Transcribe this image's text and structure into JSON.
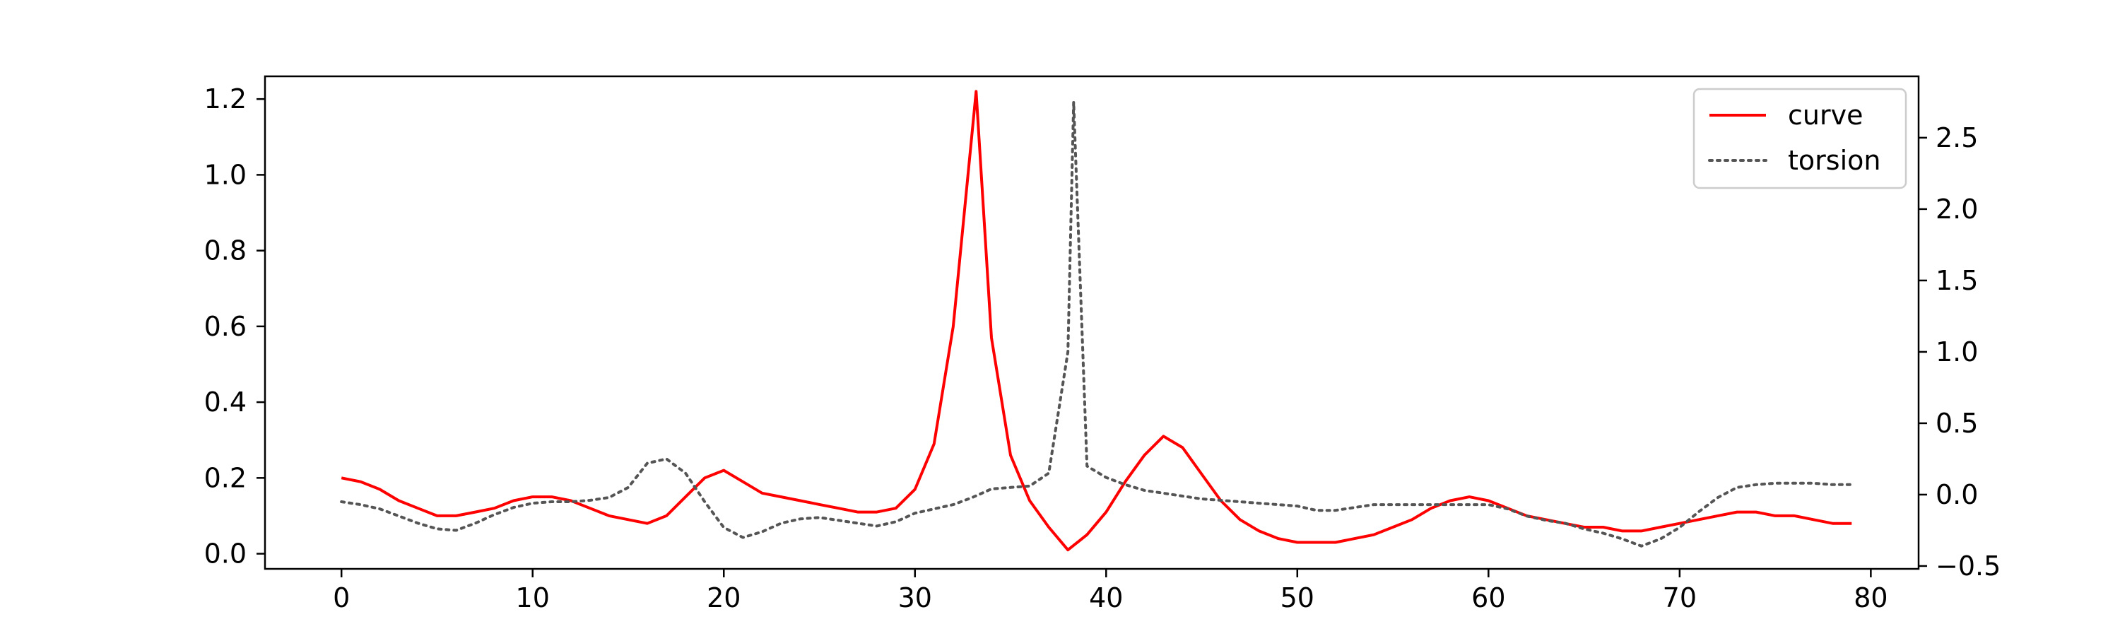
{
  "chart_data": {
    "type": "line",
    "title": "",
    "xlabel": "",
    "ylabel_left": "",
    "ylabel_right": "",
    "xlim": [
      -4,
      82.5
    ],
    "ylim_left": [
      -0.04,
      1.26
    ],
    "ylim_right": [
      -0.52,
      2.93
    ],
    "x_ticks": [
      0,
      10,
      20,
      30,
      40,
      50,
      60,
      70,
      80
    ],
    "x_tick_labels": [
      "0",
      "10",
      "20",
      "30",
      "40",
      "50",
      "60",
      "70",
      "80"
    ],
    "left_ticks": [
      0.0,
      0.2,
      0.4,
      0.6,
      0.8,
      1.0,
      1.2
    ],
    "left_tick_labels": [
      "0.0",
      "0.2",
      "0.4",
      "0.6",
      "0.8",
      "1.0",
      "1.2"
    ],
    "right_ticks": [
      -0.5,
      0.0,
      0.5,
      1.0,
      1.5,
      2.0,
      2.5
    ],
    "right_tick_labels": [
      "−0.5",
      "0.0",
      "0.5",
      "1.0",
      "1.5",
      "2.0",
      "2.5"
    ],
    "grid": false,
    "legend_position": "top-right",
    "series": [
      {
        "name": "curve",
        "axis": "left",
        "color": "#ff0000",
        "style": "solid",
        "x": [
          0,
          1,
          2,
          3,
          4,
          5,
          6,
          7,
          8,
          9,
          10,
          11,
          12,
          13,
          14,
          15,
          16,
          17,
          18,
          19,
          20,
          21,
          22,
          23,
          24,
          25,
          26,
          27,
          28,
          29,
          30,
          31,
          32,
          33.2,
          34,
          35,
          36,
          37,
          38,
          39,
          40,
          41,
          42,
          43,
          44,
          45,
          46,
          47,
          48,
          49,
          50,
          51,
          52,
          53,
          54,
          55,
          56,
          57,
          58,
          59,
          60,
          61,
          62,
          63,
          64,
          65,
          66,
          67,
          68,
          69,
          70,
          71,
          72,
          73,
          74,
          75,
          76,
          77,
          78,
          79
        ],
        "y": [
          0.2,
          0.19,
          0.17,
          0.14,
          0.12,
          0.1,
          0.1,
          0.11,
          0.12,
          0.14,
          0.15,
          0.15,
          0.14,
          0.12,
          0.1,
          0.09,
          0.08,
          0.1,
          0.15,
          0.2,
          0.22,
          0.19,
          0.16,
          0.15,
          0.14,
          0.13,
          0.12,
          0.11,
          0.11,
          0.12,
          0.17,
          0.29,
          0.6,
          1.22,
          0.57,
          0.26,
          0.14,
          0.07,
          0.01,
          0.05,
          0.11,
          0.19,
          0.26,
          0.31,
          0.28,
          0.21,
          0.14,
          0.09,
          0.06,
          0.04,
          0.03,
          0.03,
          0.03,
          0.04,
          0.05,
          0.07,
          0.09,
          0.12,
          0.14,
          0.15,
          0.14,
          0.12,
          0.1,
          0.09,
          0.08,
          0.07,
          0.07,
          0.06,
          0.06,
          0.07,
          0.08,
          0.09,
          0.1,
          0.11,
          0.11,
          0.1,
          0.1,
          0.09,
          0.08,
          0.08
        ]
      },
      {
        "name": "torsion",
        "axis": "right",
        "color": "#555555",
        "style": "dotted",
        "x": [
          0,
          1,
          2,
          3,
          4,
          5,
          6,
          7,
          8,
          9,
          10,
          11,
          12,
          13,
          14,
          15,
          16,
          17,
          18,
          19,
          20,
          21,
          22,
          23,
          24,
          25,
          26,
          27,
          28,
          29,
          30,
          31,
          32,
          33,
          34,
          35,
          36,
          37,
          38,
          38.3,
          39,
          40,
          41,
          42,
          43,
          44,
          45,
          46,
          47,
          48,
          49,
          50,
          51,
          52,
          53,
          54,
          55,
          56,
          57,
          58,
          59,
          60,
          61,
          62,
          63,
          64,
          65,
          66,
          67,
          68,
          69,
          70,
          71,
          72,
          73,
          74,
          75,
          76,
          77,
          78,
          79
        ],
        "y": [
          -0.05,
          -0.07,
          -0.1,
          -0.15,
          -0.2,
          -0.24,
          -0.25,
          -0.2,
          -0.14,
          -0.09,
          -0.06,
          -0.05,
          -0.05,
          -0.04,
          -0.02,
          0.05,
          0.22,
          0.25,
          0.15,
          -0.05,
          -0.23,
          -0.3,
          -0.26,
          -0.2,
          -0.17,
          -0.16,
          -0.18,
          -0.2,
          -0.22,
          -0.19,
          -0.13,
          -0.1,
          -0.07,
          -0.02,
          0.04,
          0.05,
          0.06,
          0.15,
          1.0,
          2.75,
          0.2,
          0.12,
          0.07,
          0.03,
          0.01,
          -0.01,
          -0.03,
          -0.04,
          -0.05,
          -0.06,
          -0.07,
          -0.08,
          -0.11,
          -0.11,
          -0.09,
          -0.07,
          -0.07,
          -0.07,
          -0.07,
          -0.07,
          -0.07,
          -0.07,
          -0.1,
          -0.15,
          -0.18,
          -0.2,
          -0.24,
          -0.27,
          -0.31,
          -0.36,
          -0.31,
          -0.23,
          -0.12,
          -0.02,
          0.05,
          0.07,
          0.08,
          0.08,
          0.08,
          0.07,
          0.07
        ]
      }
    ]
  }
}
